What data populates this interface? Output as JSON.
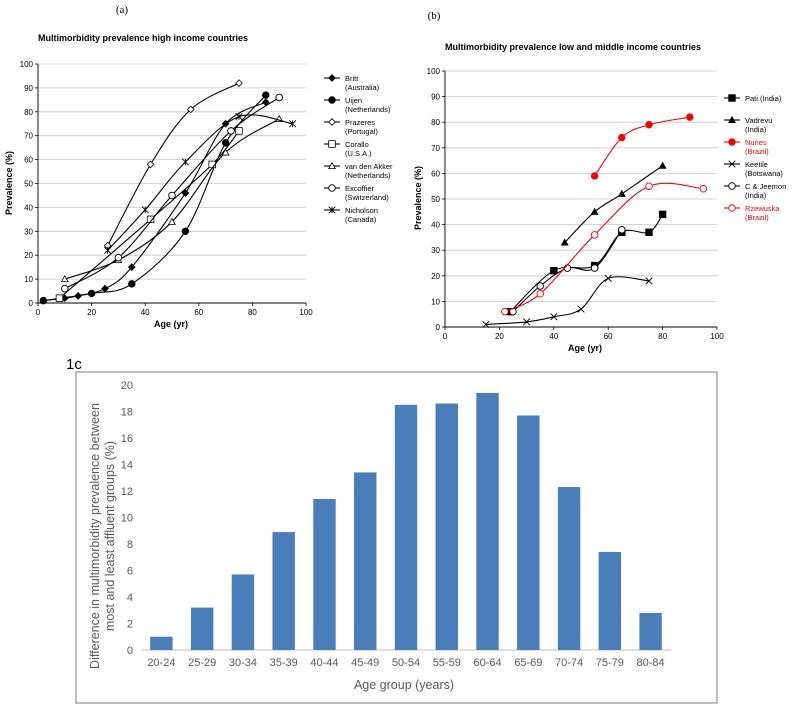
{
  "chart_data": [
    {
      "panel_label": "(a)",
      "type": "line",
      "title": "Multimorbidity prevalence high income countries",
      "xlabel": "Age (yr)",
      "ylabel": "Prevalence (%)",
      "xlim": [
        0,
        100
      ],
      "ylim": [
        0,
        100
      ],
      "xticks": [
        0,
        20,
        40,
        60,
        80,
        100
      ],
      "yticks": [
        0,
        10,
        20,
        30,
        40,
        50,
        60,
        70,
        80,
        90,
        100
      ],
      "grid": "horizontal",
      "legend": "right",
      "series": [
        {
          "name": "Britt (Australia)",
          "marker": "diamond-filled",
          "color": "#000000",
          "x": [
            2,
            10,
            15,
            25,
            35,
            55,
            70,
            85
          ],
          "y": [
            1,
            2,
            3,
            6,
            15,
            46,
            75,
            84
          ]
        },
        {
          "name": "Uijen (Netherlands)",
          "marker": "circle-filled",
          "color": "#000000",
          "x": [
            2,
            20,
            35,
            55,
            70,
            85
          ],
          "y": [
            1,
            4,
            8,
            30,
            67,
            87
          ]
        },
        {
          "name": "Prazeres (Portugal)",
          "marker": "diamond-open",
          "color": "#000000",
          "x": [
            26,
            42,
            57,
            75
          ],
          "y": [
            24,
            58,
            81,
            92
          ]
        },
        {
          "name": "Corallo (U.S.A.)",
          "marker": "square-open",
          "color": "#000000",
          "x": [
            8,
            42,
            65,
            75
          ],
          "y": [
            2,
            35,
            58,
            72
          ]
        },
        {
          "name": "van den Akker (Netherlands)",
          "marker": "triangle-open",
          "color": "#000000",
          "x": [
            10,
            30,
            50,
            70,
            90
          ],
          "y": [
            10,
            18,
            34,
            63,
            77
          ]
        },
        {
          "name": "Excoffier (Switzerland)",
          "marker": "circle-open",
          "color": "#000000",
          "x": [
            10,
            30,
            50,
            72,
            90
          ],
          "y": [
            6,
            19,
            45,
            72,
            86
          ]
        },
        {
          "name": "Nicholson (Canada)",
          "marker": "star",
          "color": "#000000",
          "x": [
            26,
            40,
            55,
            75,
            95
          ],
          "y": [
            22,
            39,
            59,
            78,
            75
          ]
        }
      ]
    },
    {
      "panel_label": "(b)",
      "type": "line",
      "title": "Multimorbidity prevalence low and middle income countries",
      "xlabel": "Age (yr)",
      "ylabel": "Prevalence (%)",
      "xlim": [
        0,
        100
      ],
      "ylim": [
        0,
        100
      ],
      "xticks": [
        0,
        20,
        40,
        60,
        80,
        100
      ],
      "yticks": [
        0,
        10,
        20,
        30,
        40,
        50,
        60,
        70,
        80,
        90,
        100
      ],
      "grid": "horizontal",
      "legend": "right",
      "series": [
        {
          "name": "Pati (India)",
          "marker": "square-filled",
          "color": "#000000",
          "x": [
            24,
            40,
            55,
            65,
            75,
            80
          ],
          "y": [
            6,
            22,
            24,
            37,
            37,
            44
          ]
        },
        {
          "name": "Vadrevu (India)",
          "marker": "triangle-filled",
          "color": "#000000",
          "x": [
            44,
            55,
            65,
            80
          ],
          "y": [
            33,
            45,
            52,
            63
          ]
        },
        {
          "name": "Nunes (Brazil)",
          "marker": "circle-filled",
          "color": "#ff0000",
          "x": [
            55,
            65,
            75,
            90
          ],
          "y": [
            59,
            74,
            79,
            82
          ]
        },
        {
          "name": "Keetile (Botswana)",
          "marker": "x",
          "color": "#000000",
          "x": [
            15,
            30,
            40,
            50,
            60,
            75
          ],
          "y": [
            1,
            2,
            4,
            7,
            19,
            18
          ]
        },
        {
          "name": "C & Jeemon (India)",
          "marker": "circle-open",
          "color": "#000000",
          "x": [
            25,
            35,
            45,
            55,
            65
          ],
          "y": [
            6,
            16,
            23,
            23,
            38
          ]
        },
        {
          "name": "Rzewuska (Brazil)",
          "marker": "circle-open",
          "color": "#ff0000",
          "x": [
            22,
            35,
            55,
            75,
            95
          ],
          "y": [
            6,
            13,
            36,
            55,
            54
          ]
        }
      ]
    },
    {
      "panel_label": "1c",
      "type": "bar",
      "title": "",
      "xlabel": "Age group (years)",
      "ylabel": "Difference in multimorbidity prevalence between most and least affluent groups (%)",
      "ylabel_lines": [
        "Difference in multimorbidity prevalence between",
        "most and least affluent groups (%)"
      ],
      "categories": [
        "20-24",
        "25-29",
        "30-34",
        "35-39",
        "40-44",
        "45-49",
        "50-54",
        "55-59",
        "60-64",
        "65-69",
        "70-74",
        "75-79",
        "80-84"
      ],
      "values": [
        1.0,
        3.2,
        5.7,
        8.9,
        11.4,
        13.4,
        18.5,
        18.6,
        19.4,
        17.7,
        12.3,
        7.4,
        2.8
      ],
      "ylim": [
        0,
        20
      ],
      "yticks": [
        0,
        2,
        4,
        6,
        8,
        10,
        12,
        14,
        16,
        18,
        20
      ],
      "bar_color": "#4a7ebb",
      "grid": "none",
      "legend": "none"
    }
  ]
}
